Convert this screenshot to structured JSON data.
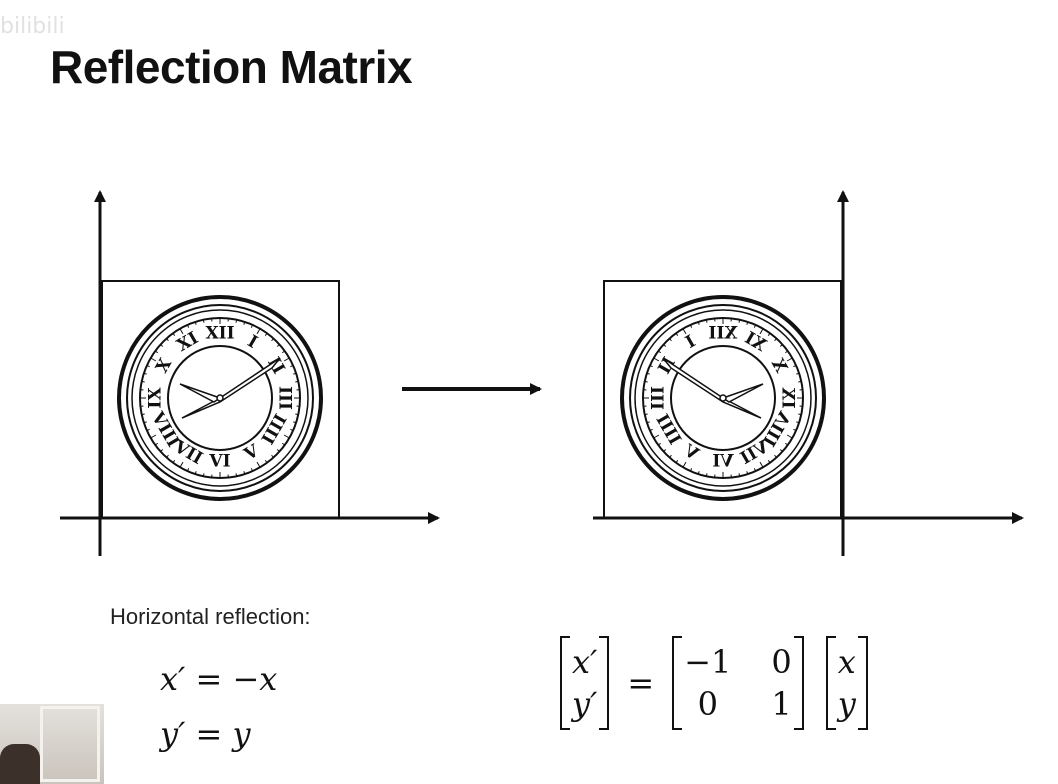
{
  "slide": {
    "title": "Reflection Matrix",
    "watermark": "bilibili",
    "caption": "Horizontal reflection:"
  },
  "equations": [
    {
      "lhs": "x′",
      "rhs": "−x"
    },
    {
      "lhs": "y′",
      "rhs": "y"
    }
  ],
  "matrix_equation": {
    "result_vector": [
      "x′",
      "y′"
    ],
    "matrix": [
      [
        "−1",
        "0"
      ],
      [
        "0",
        "1"
      ]
    ],
    "input_vector": [
      "x",
      "y"
    ],
    "equals": "="
  },
  "clock_numerals": [
    "XII",
    "I",
    "II",
    "III",
    "IIII",
    "V",
    "VI",
    "VII",
    "VIII",
    "IX",
    "X",
    "XI"
  ],
  "colors": {
    "ink": "#111111",
    "background": "#ffffff"
  }
}
